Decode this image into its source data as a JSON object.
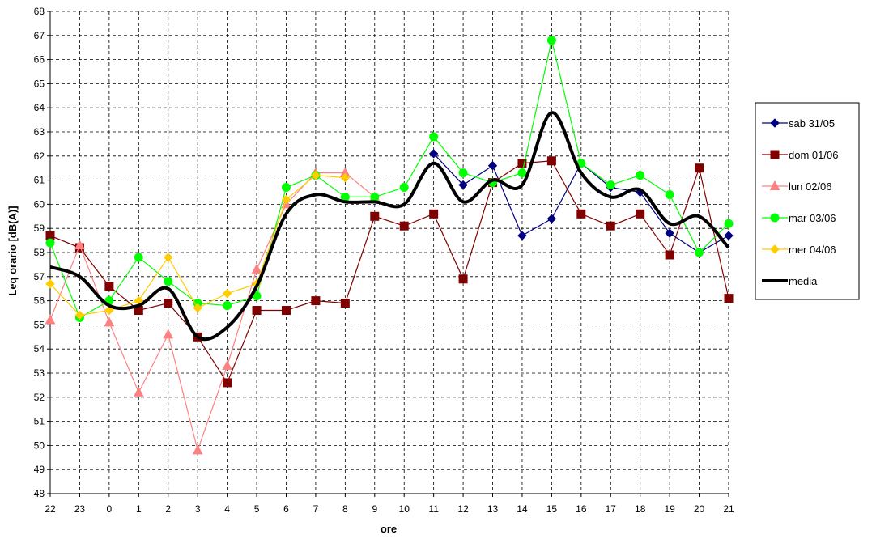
{
  "chart_data": {
    "type": "line",
    "title": "",
    "xlabel": "ore",
    "ylabel": "Leq orario [dB(A)]",
    "ylim": [
      48,
      68
    ],
    "yticks": [
      48,
      49,
      50,
      51,
      52,
      53,
      54,
      55,
      56,
      57,
      58,
      59,
      60,
      61,
      62,
      63,
      64,
      65,
      66,
      67,
      68
    ],
    "categories": [
      "22",
      "23",
      "0",
      "1",
      "2",
      "3",
      "4",
      "5",
      "6",
      "7",
      "8",
      "9",
      "10",
      "11",
      "12",
      "13",
      "14",
      "15",
      "16",
      "17",
      "18",
      "19",
      "20",
      "21"
    ],
    "grid": true,
    "legend_position": "right",
    "series": [
      {
        "name": "sab 31/05",
        "color": "#000080",
        "marker": "diamond",
        "values": [
          null,
          null,
          null,
          null,
          null,
          null,
          null,
          null,
          null,
          null,
          null,
          null,
          null,
          62.1,
          60.8,
          61.6,
          58.7,
          59.4,
          61.7,
          60.7,
          60.5,
          58.8,
          58.0,
          58.7
        ]
      },
      {
        "name": "dom 01/06",
        "color": "#800000",
        "marker": "square",
        "values": [
          58.7,
          58.2,
          56.6,
          55.6,
          55.9,
          54.5,
          52.6,
          55.6,
          55.6,
          56.0,
          55.9,
          59.5,
          59.1,
          59.6,
          56.9,
          60.9,
          61.7,
          61.8,
          59.6,
          59.1,
          59.6,
          57.9,
          61.5,
          56.1
        ]
      },
      {
        "name": "lun 02/06",
        "color": "#ff8080",
        "marker": "triangle",
        "values": [
          55.2,
          58.3,
          55.1,
          52.2,
          54.6,
          49.8,
          53.3,
          57.3,
          60.0,
          61.3,
          61.3,
          60.3,
          null,
          null,
          null,
          null,
          null,
          null,
          null,
          null,
          null,
          null,
          null,
          null
        ]
      },
      {
        "name": "mar 03/06",
        "color": "#00ff00",
        "marker": "circle",
        "values": [
          58.4,
          55.3,
          56.0,
          57.8,
          56.8,
          55.9,
          55.8,
          56.2,
          60.7,
          61.2,
          60.3,
          60.3,
          60.7,
          62.8,
          61.3,
          60.9,
          61.3,
          66.8,
          61.7,
          60.8,
          61.2,
          60.4,
          58.0,
          59.2
        ]
      },
      {
        "name": "mer 04/06",
        "color": "#ffcc00",
        "marker": "diamond",
        "values": [
          56.7,
          55.4,
          55.6,
          56.0,
          57.8,
          55.7,
          56.3,
          56.7,
          60.2,
          61.2,
          61.1,
          null,
          null,
          null,
          null,
          null,
          null,
          null,
          null,
          null,
          null,
          null,
          null,
          null
        ]
      },
      {
        "name": "media",
        "color": "#000000",
        "marker": "none",
        "smooth": true,
        "values": [
          57.4,
          57.0,
          55.8,
          55.8,
          56.5,
          54.5,
          54.9,
          56.6,
          59.6,
          60.4,
          60.1,
          60.1,
          60.0,
          61.7,
          60.1,
          61.0,
          60.8,
          63.8,
          61.3,
          60.3,
          60.6,
          59.2,
          59.5,
          58.2
        ]
      }
    ]
  }
}
